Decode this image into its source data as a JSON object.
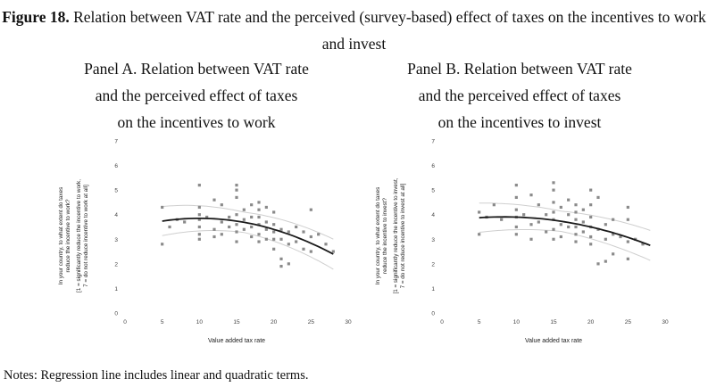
{
  "figure": {
    "label": "Figure 18.",
    "title": "Relation between VAT rate and the perceived (survey-based) effect of taxes on the incentives to work and invest"
  },
  "notes": "Notes: Regression line includes linear and quadratic terms.",
  "chart_data": [
    {
      "type": "scatter",
      "panel_title_lines": [
        "Panel A. Relation between VAT rate",
        "and the perceived effect of taxes",
        "on the incentives to work"
      ],
      "xlabel": "Value added tax rate",
      "ylabel_lines": [
        "In your country, to what extent do taxes",
        "reduce the incentive to work?",
        "[1 = significantly reduce the incentive to work,",
        "7 = do not reduce incentive to work at all]"
      ],
      "xlim": [
        0,
        30
      ],
      "ylim": [
        0,
        7
      ],
      "xticks": [
        "0",
        "5",
        "10",
        "15",
        "20",
        "25",
        "30"
      ],
      "yticks": [
        "0",
        "1",
        "2",
        "3",
        "4",
        "5",
        "6",
        "7"
      ],
      "points": [
        [
          5,
          4.3
        ],
        [
          5,
          2.8
        ],
        [
          6,
          3.5
        ],
        [
          7,
          3.8
        ],
        [
          8,
          3.7
        ],
        [
          10,
          5.2
        ],
        [
          10,
          4.3
        ],
        [
          10,
          4.0
        ],
        [
          10,
          3.8
        ],
        [
          10,
          3.5
        ],
        [
          10,
          3.2
        ],
        [
          10,
          3.0
        ],
        [
          11,
          3.9
        ],
        [
          12,
          4.6
        ],
        [
          12,
          3.4
        ],
        [
          12,
          3.1
        ],
        [
          13,
          4.4
        ],
        [
          13,
          3.7
        ],
        [
          13,
          3.2
        ],
        [
          14,
          3.9
        ],
        [
          14,
          3.5
        ],
        [
          15,
          5.2
        ],
        [
          15,
          5.0
        ],
        [
          15,
          4.7
        ],
        [
          15,
          4.0
        ],
        [
          15,
          3.6
        ],
        [
          15,
          3.3
        ],
        [
          15,
          2.9
        ],
        [
          16,
          4.2
        ],
        [
          16,
          3.8
        ],
        [
          16,
          3.4
        ],
        [
          17,
          4.4
        ],
        [
          17,
          3.9
        ],
        [
          17,
          3.5
        ],
        [
          17,
          3.1
        ],
        [
          18,
          4.5
        ],
        [
          18,
          4.2
        ],
        [
          18,
          3.9
        ],
        [
          18,
          3.6
        ],
        [
          18,
          3.2
        ],
        [
          18,
          2.9
        ],
        [
          19,
          4.3
        ],
        [
          19,
          3.7
        ],
        [
          19,
          3.4
        ],
        [
          19,
          3.0
        ],
        [
          20,
          4.1
        ],
        [
          20,
          3.6
        ],
        [
          20,
          3.3
        ],
        [
          20,
          3.0
        ],
        [
          20,
          2.6
        ],
        [
          21,
          3.4
        ],
        [
          21,
          3.0
        ],
        [
          21,
          2.2
        ],
        [
          21,
          1.9
        ],
        [
          22,
          3.3
        ],
        [
          22,
          2.8
        ],
        [
          22,
          2.0
        ],
        [
          23,
          3.5
        ],
        [
          23,
          2.9
        ],
        [
          24,
          3.3
        ],
        [
          24,
          2.6
        ],
        [
          25,
          4.2
        ],
        [
          25,
          3.1
        ],
        [
          25,
          2.5
        ],
        [
          26,
          3.2
        ],
        [
          27,
          2.8
        ],
        [
          28,
          2.5
        ]
      ],
      "fit": {
        "a": 3.4,
        "b": 0.09,
        "c": -0.0045
      },
      "ci_width": 0.55
    },
    {
      "type": "scatter",
      "panel_title_lines": [
        "Panel B. Relation between VAT rate",
        "and the perceived effect of taxes",
        "on the incentives to invest"
      ],
      "xlabel": "Value added tax rate",
      "ylabel_lines": [
        "In your country, to what extent do taxes",
        "reduce the incentive to invest?",
        "[1 = significantly reduce the incentive to invest,",
        "7 = do not reduce incentive to invest at all]"
      ],
      "xlim": [
        0,
        30
      ],
      "ylim": [
        0,
        7
      ],
      "xticks": [
        "0",
        "5",
        "10",
        "15",
        "20",
        "25",
        "30"
      ],
      "yticks": [
        "0",
        "1",
        "2",
        "3",
        "4",
        "5",
        "6",
        "7"
      ],
      "points": [
        [
          5,
          4.1
        ],
        [
          5,
          3.2
        ],
        [
          6,
          3.9
        ],
        [
          7,
          4.4
        ],
        [
          8,
          3.8
        ],
        [
          10,
          5.2
        ],
        [
          10,
          4.7
        ],
        [
          10,
          4.2
        ],
        [
          10,
          3.9
        ],
        [
          10,
          3.5
        ],
        [
          10,
          3.2
        ],
        [
          11,
          4.0
        ],
        [
          12,
          4.8
        ],
        [
          12,
          3.6
        ],
        [
          12,
          3.0
        ],
        [
          13,
          4.4
        ],
        [
          13,
          3.7
        ],
        [
          14,
          4.0
        ],
        [
          14,
          3.3
        ],
        [
          15,
          5.3
        ],
        [
          15,
          5.0
        ],
        [
          15,
          4.5
        ],
        [
          15,
          4.1
        ],
        [
          15,
          3.8
        ],
        [
          15,
          3.4
        ],
        [
          15,
          3.0
        ],
        [
          16,
          4.3
        ],
        [
          16,
          3.6
        ],
        [
          16,
          3.1
        ],
        [
          17,
          4.6
        ],
        [
          17,
          4.0
        ],
        [
          17,
          3.5
        ],
        [
          18,
          4.4
        ],
        [
          18,
          4.1
        ],
        [
          18,
          3.8
        ],
        [
          18,
          3.5
        ],
        [
          18,
          3.2
        ],
        [
          18,
          2.9
        ],
        [
          19,
          4.2
        ],
        [
          19,
          3.7
        ],
        [
          19,
          3.3
        ],
        [
          20,
          5.0
        ],
        [
          20,
          4.4
        ],
        [
          20,
          3.9
        ],
        [
          20,
          3.5
        ],
        [
          20,
          3.1
        ],
        [
          20,
          2.8
        ],
        [
          21,
          4.7
        ],
        [
          21,
          3.4
        ],
        [
          21,
          2.0
        ],
        [
          22,
          3.6
        ],
        [
          22,
          3.0
        ],
        [
          22,
          2.1
        ],
        [
          23,
          3.8
        ],
        [
          23,
          3.2
        ],
        [
          23,
          2.4
        ],
        [
          24,
          3.1
        ],
        [
          25,
          4.3
        ],
        [
          25,
          3.8
        ],
        [
          25,
          2.9
        ],
        [
          25,
          2.2
        ],
        [
          26,
          3.0
        ],
        [
          27,
          2.8
        ]
      ],
      "fit": {
        "a": 3.7,
        "b": 0.05,
        "c": -0.003
      },
      "ci_width": 0.55
    }
  ]
}
